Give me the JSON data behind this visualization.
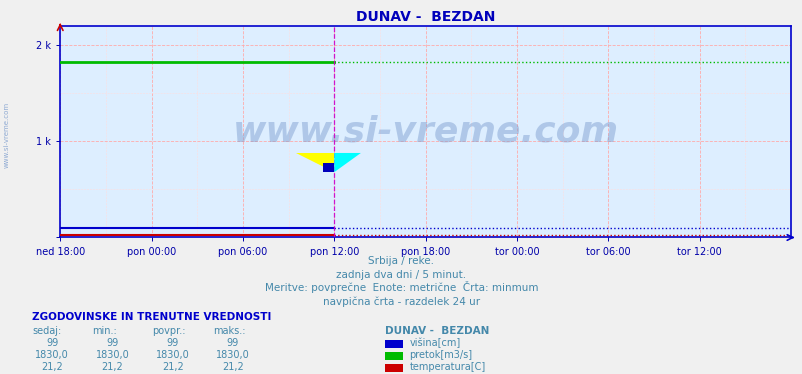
{
  "title": "DUNAV -  BEZDAN",
  "title_color": "#0000bb",
  "title_fontsize": 10,
  "bg_color": "#f0f0f0",
  "plot_bg_color": "#ddeeff",
  "fig_width": 8.03,
  "fig_height": 3.74,
  "dpi": 100,
  "xlim": [
    0,
    576
  ],
  "ylim": [
    0,
    2200
  ],
  "ytick_positions": [
    0,
    1000,
    2000
  ],
  "ytick_labels": [
    "",
    "1 k",
    "2 k"
  ],
  "xtick_labels": [
    "ned 18:00",
    "pon 00:00",
    "pon 06:00",
    "pon 12:00",
    "pon 18:00",
    "tor 00:00",
    "tor 06:00",
    "tor 12:00"
  ],
  "xtick_positions": [
    0,
    72,
    144,
    216,
    288,
    360,
    432,
    504
  ],
  "grid_major_color": "#ffaaaa",
  "grid_minor_color": "#ffdddd",
  "višina_value": 99,
  "višina_color": "#0000cc",
  "pretok_value": 1830.0,
  "pretok_color": "#00bb00",
  "temperatura_value": 21.2,
  "temperatura_color": "#cc0000",
  "current_x": 216,
  "vline_color": "#cc00cc",
  "watermark_text": "www.si-vreme.com",
  "watermark_color": "#7799cc",
  "watermark_alpha": 0.45,
  "watermark_fontsize": 26,
  "sidebar_text": "www.si-vreme.com",
  "sidebar_color": "#7799cc",
  "subtitle1": "Srbija / reke.",
  "subtitle2": "zadnja dva dni / 5 minut.",
  "subtitle3": "Meritve: povprečne  Enote: metrične  Črta: minmum",
  "subtitle4": "navpična črta - razdelek 24 ur",
  "subtitle_color": "#4488aa",
  "subtitle_fontsize": 7.5,
  "table_header": "ZGODOVINSKE IN TRENUTNE VREDNOSTI",
  "table_header_color": "#0000cc",
  "table_header_fontsize": 7.5,
  "col_headers": [
    "sedaj:",
    "min.:",
    "povpr.:",
    "maks.:"
  ],
  "col_values_višina": [
    "99",
    "99",
    "99",
    "99"
  ],
  "col_values_pretok": [
    "1830,0",
    "1830,0",
    "1830,0",
    "1830,0"
  ],
  "col_values_temperatura": [
    "21,2",
    "21,2",
    "21,2",
    "21,2"
  ],
  "legend_title": "DUNAV -  BEZDAN",
  "legend_items": [
    "višina[cm]",
    "pretok[m3/s]",
    "temperatura[C]"
  ],
  "legend_colors": [
    "#0000cc",
    "#00bb00",
    "#cc0000"
  ],
  "tick_color": "#0000aa",
  "tick_fontsize": 7,
  "spine_color": "#0000cc",
  "n_points": 577
}
